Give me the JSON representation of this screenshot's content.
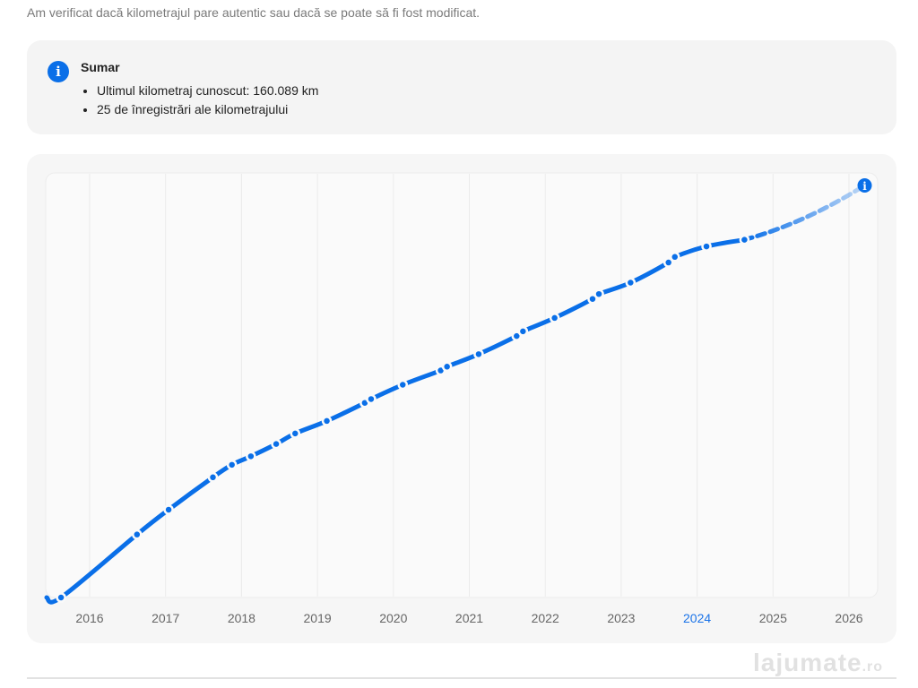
{
  "header": {
    "subtitle": "Am verificat dacă kilometrajul pare autentic sau dacă se poate să fi fost modificat."
  },
  "summary": {
    "icon": "info-icon",
    "title": "Sumar",
    "items": [
      "Ultimul kilometraj cunoscut: 160.089 km",
      "25 de înregistrări ale kilometrajului"
    ]
  },
  "colors": {
    "accent": "#0a6fe8",
    "highlight_year": "#1a73e8",
    "axis_text": "#666666"
  },
  "watermark": "lajumate.ro",
  "chart_data": {
    "type": "line",
    "title": "",
    "xlabel": "",
    "ylabel": "",
    "x_ticks": [
      "2016",
      "2017",
      "2018",
      "2019",
      "2020",
      "2021",
      "2022",
      "2023",
      "2024",
      "2025",
      "2026"
    ],
    "highlighted_tick": "2024",
    "xlim": [
      "2015-06",
      "2026-06"
    ],
    "ylim": [
      0,
      190000
    ],
    "grid": "vertical",
    "units": "km",
    "series": [
      {
        "points": [
          [
            "2015-08",
            0
          ],
          [
            "2016-08",
            28200
          ],
          [
            "2017-01",
            39300
          ],
          [
            "2017-08",
            53800
          ],
          [
            "2017-11",
            59400
          ],
          [
            "2018-02",
            63200
          ],
          [
            "2018-06",
            68700
          ],
          [
            "2018-09",
            73400
          ],
          [
            "2019-02",
            79000
          ],
          [
            "2019-08",
            87100
          ],
          [
            "2019-09",
            88800
          ],
          [
            "2020-02",
            95200
          ],
          [
            "2020-08",
            101600
          ],
          [
            "2020-09",
            103300
          ],
          [
            "2021-02",
            108900
          ],
          [
            "2021-08",
            117000
          ],
          [
            "2021-09",
            119100
          ],
          [
            "2022-02",
            125100
          ],
          [
            "2022-08",
            133600
          ],
          [
            "2022-09",
            135800
          ],
          [
            "2023-02",
            140900
          ],
          [
            "2023-08",
            149900
          ],
          [
            "2023-09",
            152400
          ],
          [
            "2024-02",
            157100
          ],
          [
            "2024-08",
            160089
          ]
        ]
      }
    ],
    "projection": {
      "point": [
        "2026-03",
        184400
      ],
      "marker_icon": "info-icon",
      "style": "dashed-fading"
    }
  }
}
